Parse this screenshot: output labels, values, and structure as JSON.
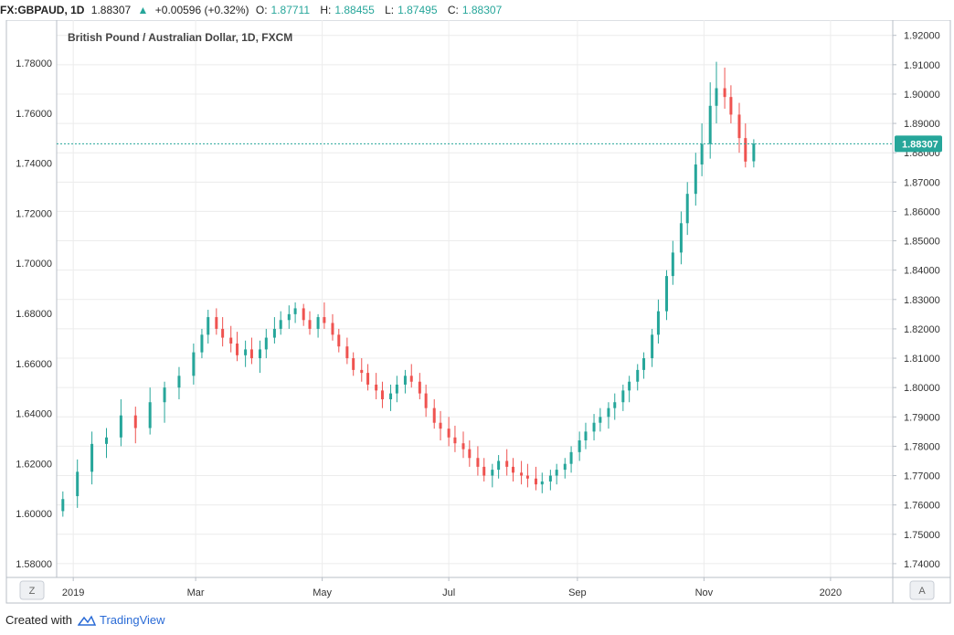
{
  "header": {
    "symbol": "FX:GBPAUD, 1D",
    "price": "1.88307",
    "arrow": "▲",
    "change": "+0.00596 (+0.32%)",
    "o_label": "O:",
    "o_value": "1.87711",
    "h_label": "H:",
    "h_value": "1.88455",
    "l_label": "L:",
    "l_value": "1.87495",
    "c_label": "C:",
    "c_value": "1.88307"
  },
  "footer": {
    "created_with": "Created with",
    "brand": "TradingView"
  },
  "buttons": {
    "left": "Z",
    "right": "A"
  },
  "colors": {
    "up": "#26a69a",
    "down": "#ef5350",
    "grid": "#ececec",
    "price_line": "#26a69a"
  },
  "chart_data": {
    "type": "candlestick",
    "title": "British Pound / Australian Dollar, 1D, FXCM",
    "left_axis": {
      "ticks": [
        "1.58000",
        "1.60000",
        "1.62000",
        "1.64000",
        "1.66000",
        "1.68000",
        "1.70000",
        "1.72000",
        "1.74000",
        "1.76000",
        "1.78000"
      ],
      "range": [
        1.5745,
        1.7972
      ]
    },
    "right_axis": {
      "ticks": [
        "1.74000",
        "1.75000",
        "1.76000",
        "1.77000",
        "1.78000",
        "1.79000",
        "1.80000",
        "1.81000",
        "1.82000",
        "1.83000",
        "1.84000",
        "1.85000",
        "1.86000",
        "1.87000",
        "1.88000",
        "1.89000",
        "1.90000",
        "1.91000",
        "1.92000"
      ],
      "range": [
        1.7353,
        1.9252
      ]
    },
    "x_labels": [
      "2019",
      "Mar",
      "May",
      "Jul",
      "Sep",
      "Nov",
      "2020"
    ],
    "x_range": [
      "2018-12-24",
      "2020-01-31"
    ],
    "last_price": "1.88307",
    "candles": [
      [
        "2018-12-27",
        1.7579,
        1.7646,
        1.756,
        1.762
      ],
      [
        "2019-01-03",
        1.763,
        1.7755,
        1.759,
        1.7713
      ],
      [
        "2019-01-10",
        1.7713,
        1.785,
        1.767,
        1.7808
      ],
      [
        "2019-01-17",
        1.7808,
        1.7862,
        1.776,
        1.783
      ],
      [
        "2019-01-24",
        1.783,
        1.796,
        1.78,
        1.7905
      ],
      [
        "2019-01-31",
        1.7905,
        1.7935,
        1.781,
        1.7862
      ],
      [
        "2019-02-07",
        1.7862,
        1.8,
        1.784,
        1.795
      ],
      [
        "2019-02-14",
        1.795,
        1.802,
        1.788,
        1.8
      ],
      [
        "2019-02-21",
        1.8,
        1.807,
        1.796,
        1.804
      ],
      [
        "2019-02-28",
        1.804,
        1.815,
        1.801,
        1.812
      ],
      [
        "2019-03-04",
        1.812,
        1.82,
        1.81,
        1.818
      ],
      [
        "2019-03-07",
        1.818,
        1.8265,
        1.815,
        1.824
      ],
      [
        "2019-03-11",
        1.824,
        1.827,
        1.818,
        1.82
      ],
      [
        "2019-03-14",
        1.82,
        1.824,
        1.814,
        1.817
      ],
      [
        "2019-03-18",
        1.817,
        1.821,
        1.812,
        1.815
      ],
      [
        "2019-03-21",
        1.815,
        1.819,
        1.809,
        1.811
      ],
      [
        "2019-03-25",
        1.811,
        1.816,
        1.807,
        1.813
      ],
      [
        "2019-03-28",
        1.813,
        1.817,
        1.808,
        1.81
      ],
      [
        "2019-04-01",
        1.81,
        1.816,
        1.805,
        1.813
      ],
      [
        "2019-04-04",
        1.813,
        1.82,
        1.81,
        1.817
      ],
      [
        "2019-04-08",
        1.817,
        1.824,
        1.815,
        1.82
      ],
      [
        "2019-04-11",
        1.82,
        1.826,
        1.818,
        1.823
      ],
      [
        "2019-04-15",
        1.823,
        1.828,
        1.82,
        1.825
      ],
      [
        "2019-04-18",
        1.825,
        1.829,
        1.822,
        1.827
      ],
      [
        "2019-04-22",
        1.827,
        1.8285,
        1.821,
        1.823
      ],
      [
        "2019-04-25",
        1.823,
        1.826,
        1.818,
        1.82
      ],
      [
        "2019-04-29",
        1.82,
        1.825,
        1.817,
        1.824
      ],
      [
        "2019-05-02",
        1.824,
        1.829,
        1.82,
        1.822
      ],
      [
        "2019-05-06",
        1.822,
        1.825,
        1.816,
        1.818
      ],
      [
        "2019-05-09",
        1.818,
        1.82,
        1.812,
        1.814
      ],
      [
        "2019-05-13",
        1.814,
        1.817,
        1.808,
        1.81
      ],
      [
        "2019-05-16",
        1.81,
        1.812,
        1.804,
        1.806
      ],
      [
        "2019-05-20",
        1.806,
        1.81,
        1.802,
        1.805
      ],
      [
        "2019-05-23",
        1.805,
        1.808,
        1.799,
        1.801
      ],
      [
        "2019-05-27",
        1.801,
        1.805,
        1.796,
        1.799
      ],
      [
        "2019-05-30",
        1.799,
        1.802,
        1.793,
        1.796
      ],
      [
        "2019-06-03",
        1.796,
        1.801,
        1.792,
        1.798
      ],
      [
        "2019-06-06",
        1.798,
        1.804,
        1.795,
        1.801
      ],
      [
        "2019-06-10",
        1.801,
        1.806,
        1.798,
        1.804
      ],
      [
        "2019-06-13",
        1.804,
        1.808,
        1.8,
        1.802
      ],
      [
        "2019-06-17",
        1.802,
        1.805,
        1.796,
        1.798
      ],
      [
        "2019-06-20",
        1.798,
        1.801,
        1.79,
        1.793
      ],
      [
        "2019-06-24",
        1.793,
        1.796,
        1.786,
        1.788
      ],
      [
        "2019-06-27",
        1.788,
        1.792,
        1.782,
        1.786
      ],
      [
        "2019-07-01",
        1.786,
        1.79,
        1.78,
        1.783
      ],
      [
        "2019-07-04",
        1.783,
        1.787,
        1.778,
        1.781
      ],
      [
        "2019-07-08",
        1.781,
        1.785,
        1.776,
        1.779
      ],
      [
        "2019-07-11",
        1.779,
        1.782,
        1.773,
        1.776
      ],
      [
        "2019-07-15",
        1.776,
        1.78,
        1.77,
        1.773
      ],
      [
        "2019-07-18",
        1.773,
        1.776,
        1.768,
        1.77
      ],
      [
        "2019-07-22",
        1.77,
        1.774,
        1.766,
        1.772
      ],
      [
        "2019-07-25",
        1.772,
        1.777,
        1.769,
        1.775
      ],
      [
        "2019-07-29",
        1.775,
        1.779,
        1.77,
        1.773
      ],
      [
        "2019-08-01",
        1.773,
        1.776,
        1.768,
        1.771
      ],
      [
        "2019-08-05",
        1.771,
        1.775,
        1.767,
        1.77
      ],
      [
        "2019-08-08",
        1.77,
        1.774,
        1.766,
        1.769
      ],
      [
        "2019-08-12",
        1.769,
        1.773,
        1.765,
        1.767
      ],
      [
        "2019-08-15",
        1.767,
        1.771,
        1.764,
        1.768
      ],
      [
        "2019-08-19",
        1.768,
        1.772,
        1.765,
        1.77
      ],
      [
        "2019-08-22",
        1.77,
        1.774,
        1.767,
        1.772
      ],
      [
        "2019-08-26",
        1.772,
        1.776,
        1.769,
        1.774
      ],
      [
        "2019-08-29",
        1.774,
        1.78,
        1.771,
        1.778
      ],
      [
        "2019-09-02",
        1.778,
        1.785,
        1.775,
        1.782
      ],
      [
        "2019-09-05",
        1.782,
        1.788,
        1.779,
        1.785
      ],
      [
        "2019-09-09",
        1.785,
        1.791,
        1.782,
        1.788
      ],
      [
        "2019-09-12",
        1.788,
        1.793,
        1.785,
        1.79
      ],
      [
        "2019-09-16",
        1.79,
        1.795,
        1.786,
        1.793
      ],
      [
        "2019-09-19",
        1.793,
        1.798,
        1.789,
        1.795
      ],
      [
        "2019-09-23",
        1.795,
        1.801,
        1.792,
        1.799
      ],
      [
        "2019-09-26",
        1.799,
        1.804,
        1.795,
        1.802
      ],
      [
        "2019-09-30",
        1.802,
        1.808,
        1.799,
        1.806
      ],
      [
        "2019-10-03",
        1.806,
        1.812,
        1.803,
        1.81
      ],
      [
        "2019-10-07",
        1.81,
        1.82,
        1.807,
        1.818
      ],
      [
        "2019-10-10",
        1.818,
        1.83,
        1.815,
        1.826
      ],
      [
        "2019-10-14",
        1.826,
        1.84,
        1.823,
        1.838
      ],
      [
        "2019-10-17",
        1.838,
        1.85,
        1.835,
        1.846
      ],
      [
        "2019-10-21",
        1.846,
        1.86,
        1.842,
        1.856
      ],
      [
        "2019-10-24",
        1.856,
        1.87,
        1.852,
        1.866
      ],
      [
        "2019-10-28",
        1.866,
        1.88,
        1.862,
        1.876
      ],
      [
        "2019-10-31",
        1.876,
        1.89,
        1.872,
        1.883
      ],
      [
        "2019-11-04",
        1.883,
        1.904,
        1.878,
        1.896
      ],
      [
        "2019-11-07",
        1.896,
        1.911,
        1.89,
        1.902
      ],
      [
        "2019-11-11",
        1.902,
        1.909,
        1.895,
        1.899
      ],
      [
        "2019-11-14",
        1.899,
        1.903,
        1.89,
        1.893
      ],
      [
        "2019-11-18",
        1.893,
        1.897,
        1.88,
        1.885
      ],
      [
        "2019-11-21",
        1.885,
        1.89,
        1.875,
        1.877
      ],
      [
        "2019-11-25",
        1.8771,
        1.8846,
        1.875,
        1.8831
      ]
    ]
  }
}
